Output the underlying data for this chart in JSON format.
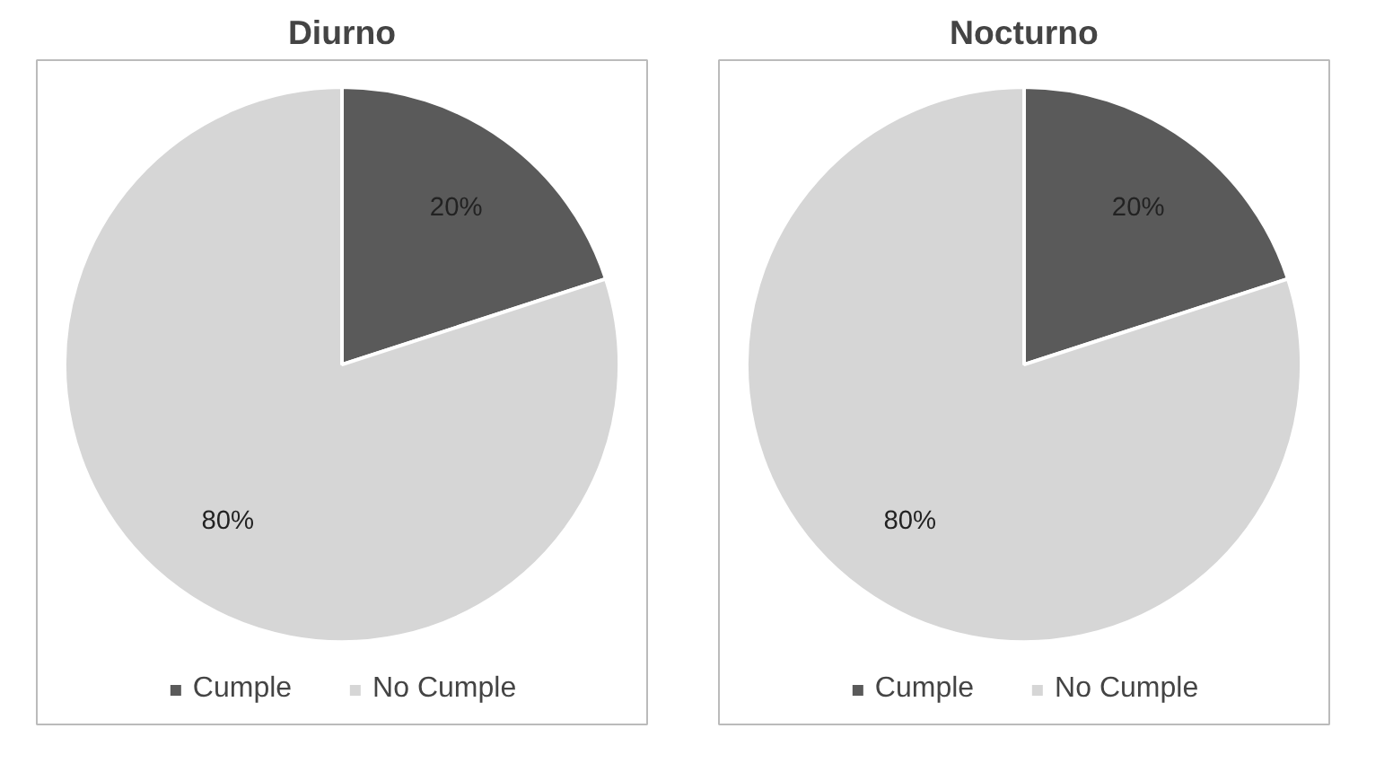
{
  "chart_data": [
    {
      "type": "pie",
      "title": "Diurno",
      "categories": [
        "Cumple",
        "No Cumple"
      ],
      "values": [
        20,
        80
      ],
      "colors": [
        "#5a5a5a",
        "#d6d6d6"
      ],
      "value_labels": [
        "20%",
        "80%"
      ],
      "legend": "bottom"
    },
    {
      "type": "pie",
      "title": "Nocturno",
      "categories": [
        "Cumple",
        "No Cumple"
      ],
      "values": [
        20,
        80
      ],
      "colors": [
        "#5a5a5a",
        "#d6d6d6"
      ],
      "value_labels": [
        "20%",
        "80%"
      ],
      "legend": "bottom"
    }
  ]
}
